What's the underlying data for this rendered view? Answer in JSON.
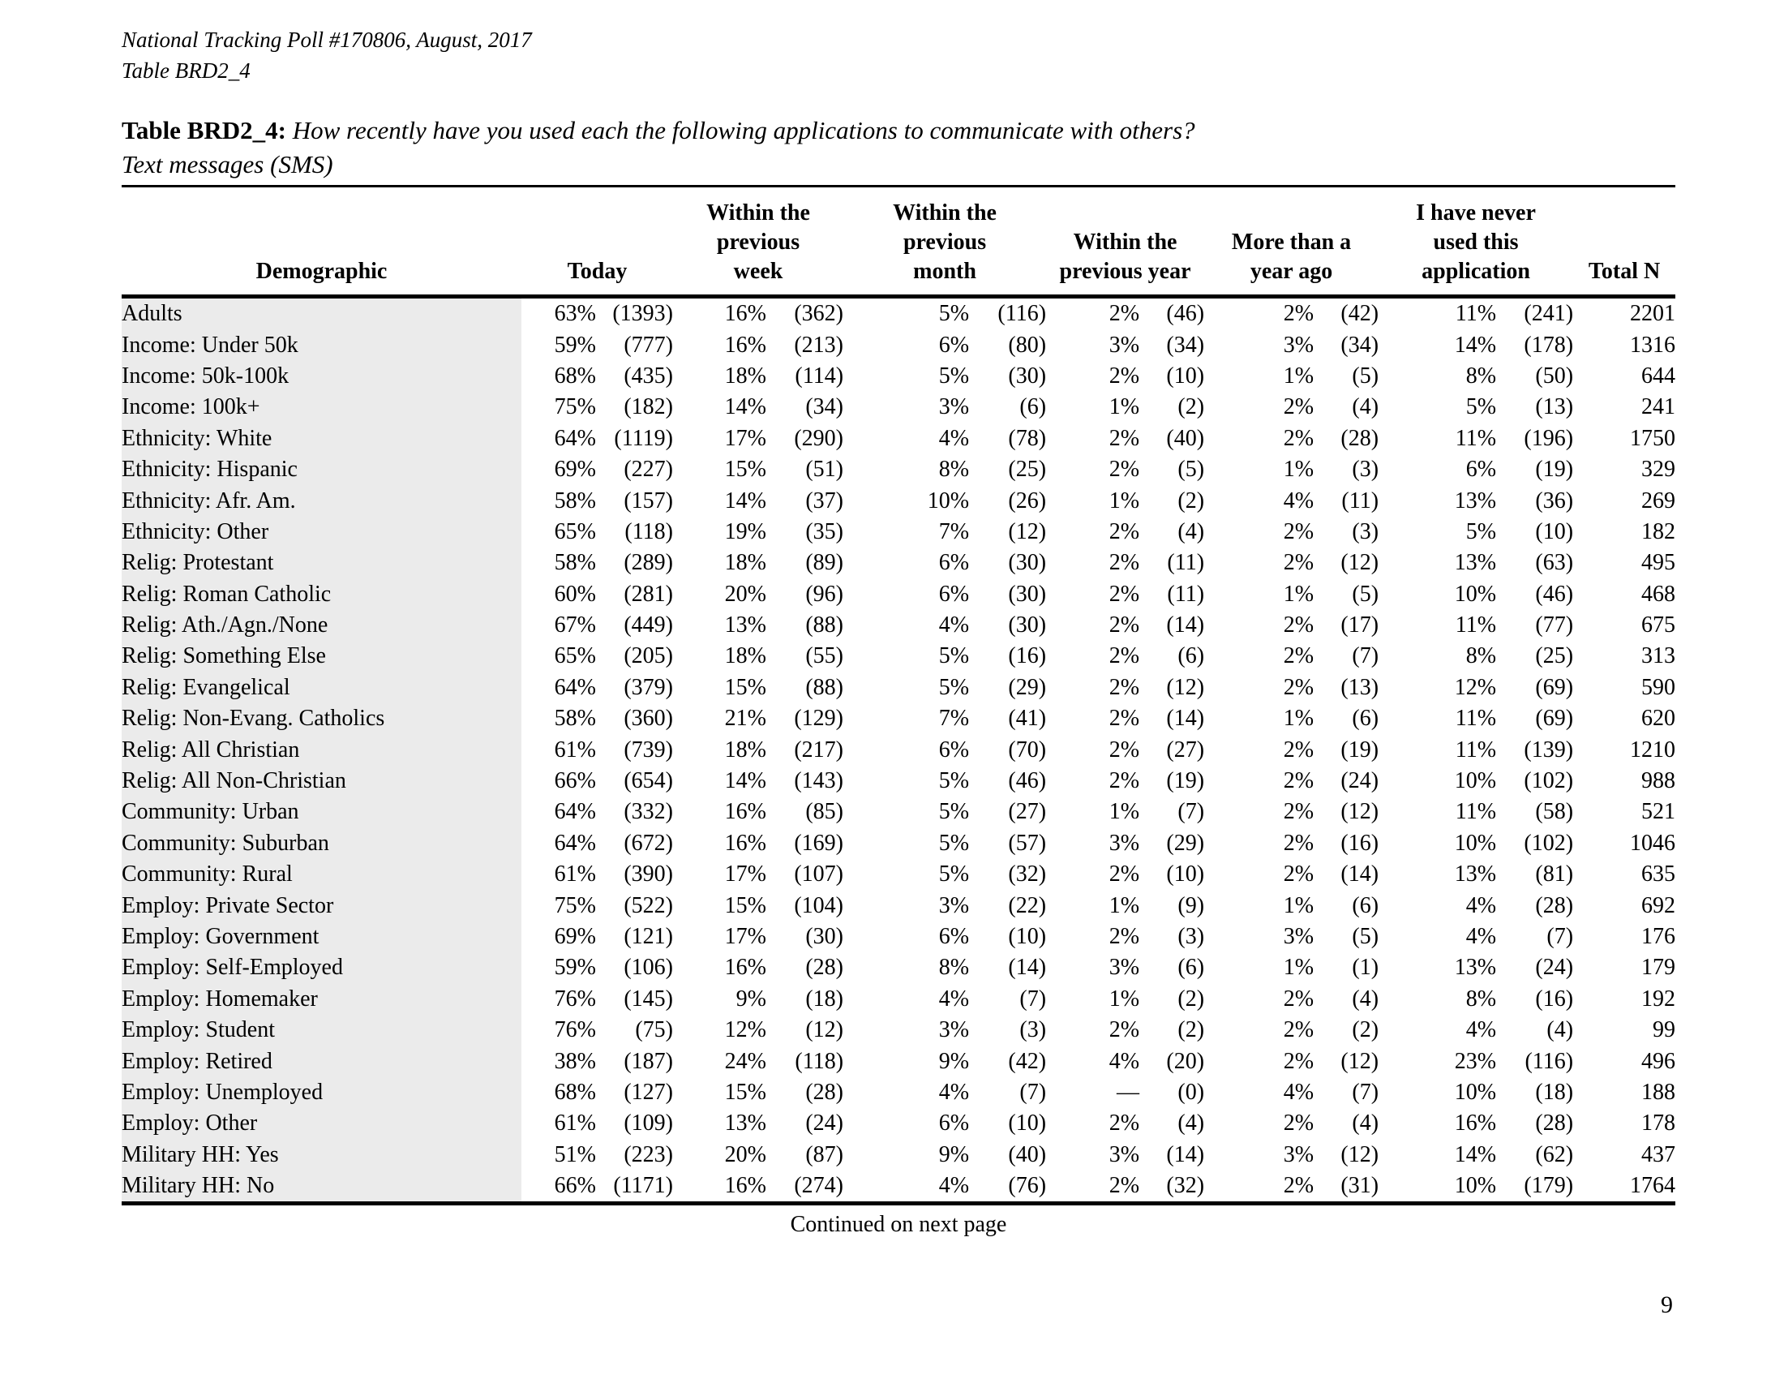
{
  "page": {
    "header_line1": "National Tracking Poll #170806, August, 2017",
    "header_line2": "Table BRD2_4",
    "title_prefix": "Table BRD2_4:",
    "title_question": "How recently have you used each the following applications to communicate with others?",
    "title_sub": "Text messages (SMS)",
    "footer": "Continued on next page",
    "page_number": "9"
  },
  "table": {
    "headers": [
      "Demographic",
      "Today",
      "Within the\nprevious\nweek",
      "Within the\nprevious\nmonth",
      "Within the\nprevious year",
      "More than a\nyear ago",
      "I have never\nused this\napplication",
      "Total N"
    ],
    "rows": [
      {
        "label": "Adults",
        "values": [
          "63%",
          "(1393)",
          "16%",
          "(362)",
          "5%",
          "(116)",
          "2%",
          "(46)",
          "2%",
          "(42)",
          "11%",
          "(241)"
        ],
        "total": "2201"
      },
      {
        "label": "Income: Under 50k",
        "values": [
          "59%",
          "(777)",
          "16%",
          "(213)",
          "6%",
          "(80)",
          "3%",
          "(34)",
          "3%",
          "(34)",
          "14%",
          "(178)"
        ],
        "total": "1316"
      },
      {
        "label": "Income: 50k-100k",
        "values": [
          "68%",
          "(435)",
          "18%",
          "(114)",
          "5%",
          "(30)",
          "2%",
          "(10)",
          "1%",
          "(5)",
          "8%",
          "(50)"
        ],
        "total": "644"
      },
      {
        "label": "Income: 100k+",
        "values": [
          "75%",
          "(182)",
          "14%",
          "(34)",
          "3%",
          "(6)",
          "1%",
          "(2)",
          "2%",
          "(4)",
          "5%",
          "(13)"
        ],
        "total": "241"
      },
      {
        "label": "Ethnicity: White",
        "values": [
          "64%",
          "(1119)",
          "17%",
          "(290)",
          "4%",
          "(78)",
          "2%",
          "(40)",
          "2%",
          "(28)",
          "11%",
          "(196)"
        ],
        "total": "1750"
      },
      {
        "label": "Ethnicity: Hispanic",
        "values": [
          "69%",
          "(227)",
          "15%",
          "(51)",
          "8%",
          "(25)",
          "2%",
          "(5)",
          "1%",
          "(3)",
          "6%",
          "(19)"
        ],
        "total": "329"
      },
      {
        "label": "Ethnicity: Afr. Am.",
        "values": [
          "58%",
          "(157)",
          "14%",
          "(37)",
          "10%",
          "(26)",
          "1%",
          "(2)",
          "4%",
          "(11)",
          "13%",
          "(36)"
        ],
        "total": "269"
      },
      {
        "label": "Ethnicity: Other",
        "values": [
          "65%",
          "(118)",
          "19%",
          "(35)",
          "7%",
          "(12)",
          "2%",
          "(4)",
          "2%",
          "(3)",
          "5%",
          "(10)"
        ],
        "total": "182"
      },
      {
        "label": "Relig: Protestant",
        "values": [
          "58%",
          "(289)",
          "18%",
          "(89)",
          "6%",
          "(30)",
          "2%",
          "(11)",
          "2%",
          "(12)",
          "13%",
          "(63)"
        ],
        "total": "495"
      },
      {
        "label": "Relig: Roman Catholic",
        "values": [
          "60%",
          "(281)",
          "20%",
          "(96)",
          "6%",
          "(30)",
          "2%",
          "(11)",
          "1%",
          "(5)",
          "10%",
          "(46)"
        ],
        "total": "468"
      },
      {
        "label": "Relig: Ath./Agn./None",
        "values": [
          "67%",
          "(449)",
          "13%",
          "(88)",
          "4%",
          "(30)",
          "2%",
          "(14)",
          "2%",
          "(17)",
          "11%",
          "(77)"
        ],
        "total": "675"
      },
      {
        "label": "Relig: Something Else",
        "values": [
          "65%",
          "(205)",
          "18%",
          "(55)",
          "5%",
          "(16)",
          "2%",
          "(6)",
          "2%",
          "(7)",
          "8%",
          "(25)"
        ],
        "total": "313"
      },
      {
        "label": "Relig: Evangelical",
        "values": [
          "64%",
          "(379)",
          "15%",
          "(88)",
          "5%",
          "(29)",
          "2%",
          "(12)",
          "2%",
          "(13)",
          "12%",
          "(69)"
        ],
        "total": "590"
      },
      {
        "label": "Relig: Non-Evang. Catholics",
        "values": [
          "58%",
          "(360)",
          "21%",
          "(129)",
          "7%",
          "(41)",
          "2%",
          "(14)",
          "1%",
          "(6)",
          "11%",
          "(69)"
        ],
        "total": "620"
      },
      {
        "label": "Relig: All Christian",
        "values": [
          "61%",
          "(739)",
          "18%",
          "(217)",
          "6%",
          "(70)",
          "2%",
          "(27)",
          "2%",
          "(19)",
          "11%",
          "(139)"
        ],
        "total": "1210"
      },
      {
        "label": "Relig: All Non-Christian",
        "values": [
          "66%",
          "(654)",
          "14%",
          "(143)",
          "5%",
          "(46)",
          "2%",
          "(19)",
          "2%",
          "(24)",
          "10%",
          "(102)"
        ],
        "total": "988"
      },
      {
        "label": "Community: Urban",
        "values": [
          "64%",
          "(332)",
          "16%",
          "(85)",
          "5%",
          "(27)",
          "1%",
          "(7)",
          "2%",
          "(12)",
          "11%",
          "(58)"
        ],
        "total": "521"
      },
      {
        "label": "Community: Suburban",
        "values": [
          "64%",
          "(672)",
          "16%",
          "(169)",
          "5%",
          "(57)",
          "3%",
          "(29)",
          "2%",
          "(16)",
          "10%",
          "(102)"
        ],
        "total": "1046"
      },
      {
        "label": "Community: Rural",
        "values": [
          "61%",
          "(390)",
          "17%",
          "(107)",
          "5%",
          "(32)",
          "2%",
          "(10)",
          "2%",
          "(14)",
          "13%",
          "(81)"
        ],
        "total": "635"
      },
      {
        "label": "Employ: Private Sector",
        "values": [
          "75%",
          "(522)",
          "15%",
          "(104)",
          "3%",
          "(22)",
          "1%",
          "(9)",
          "1%",
          "(6)",
          "4%",
          "(28)"
        ],
        "total": "692"
      },
      {
        "label": "Employ: Government",
        "values": [
          "69%",
          "(121)",
          "17%",
          "(30)",
          "6%",
          "(10)",
          "2%",
          "(3)",
          "3%",
          "(5)",
          "4%",
          "(7)"
        ],
        "total": "176"
      },
      {
        "label": "Employ: Self-Employed",
        "values": [
          "59%",
          "(106)",
          "16%",
          "(28)",
          "8%",
          "(14)",
          "3%",
          "(6)",
          "1%",
          "(1)",
          "13%",
          "(24)"
        ],
        "total": "179"
      },
      {
        "label": "Employ: Homemaker",
        "values": [
          "76%",
          "(145)",
          "9%",
          "(18)",
          "4%",
          "(7)",
          "1%",
          "(2)",
          "2%",
          "(4)",
          "8%",
          "(16)"
        ],
        "total": "192"
      },
      {
        "label": "Employ: Student",
        "values": [
          "76%",
          "(75)",
          "12%",
          "(12)",
          "3%",
          "(3)",
          "2%",
          "(2)",
          "2%",
          "(2)",
          "4%",
          "(4)"
        ],
        "total": "99"
      },
      {
        "label": "Employ: Retired",
        "values": [
          "38%",
          "(187)",
          "24%",
          "(118)",
          "9%",
          "(42)",
          "4%",
          "(20)",
          "2%",
          "(12)",
          "23%",
          "(116)"
        ],
        "total": "496"
      },
      {
        "label": "Employ: Unemployed",
        "values": [
          "68%",
          "(127)",
          "15%",
          "(28)",
          "4%",
          "(7)",
          "—",
          "(0)",
          "4%",
          "(7)",
          "10%",
          "(18)"
        ],
        "total": "188"
      },
      {
        "label": "Employ: Other",
        "values": [
          "61%",
          "(109)",
          "13%",
          "(24)",
          "6%",
          "(10)",
          "2%",
          "(4)",
          "2%",
          "(4)",
          "16%",
          "(28)"
        ],
        "total": "178"
      },
      {
        "label": "Military HH: Yes",
        "values": [
          "51%",
          "(223)",
          "20%",
          "(87)",
          "9%",
          "(40)",
          "3%",
          "(14)",
          "3%",
          "(12)",
          "14%",
          "(62)"
        ],
        "total": "437"
      },
      {
        "label": "Military HH: No",
        "values": [
          "66%",
          "(1171)",
          "16%",
          "(274)",
          "4%",
          "(76)",
          "2%",
          "(32)",
          "2%",
          "(31)",
          "10%",
          "(179)"
        ],
        "total": "1764"
      }
    ]
  }
}
